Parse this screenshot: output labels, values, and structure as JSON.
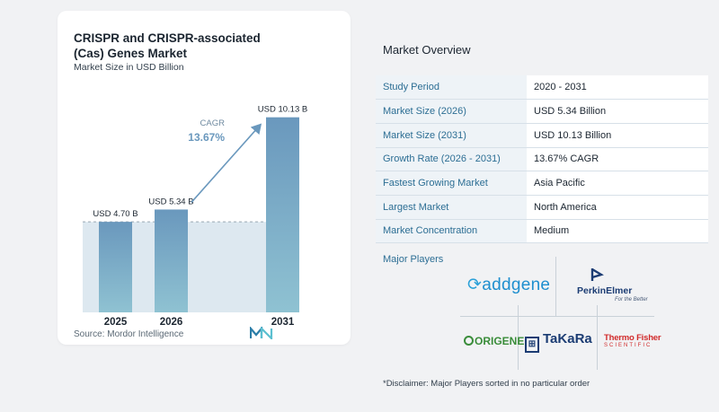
{
  "card": {
    "title": "CRISPR and CRISPR-associated (Cas) Genes Market",
    "subtitle": "Market Size in USD Billion",
    "source": "Source:  Mordor Intelligence"
  },
  "chart_data": {
    "type": "bar",
    "categories": [
      "2025",
      "2026",
      "2031"
    ],
    "values": [
      4.7,
      5.34,
      10.13
    ],
    "data_labels": [
      "USD 4.70 B",
      "USD 5.34 B",
      "USD 10.13 B"
    ],
    "annotation": {
      "label": "CAGR",
      "value": "13.67%"
    },
    "ylim": [
      0,
      11
    ],
    "reference_line": 4.7,
    "colors": {
      "bar_top": "#6a98bd",
      "bar_bottom": "#8fc2d2",
      "shade": "#dde8f0",
      "arrow": "#6a98bd"
    }
  },
  "overview": {
    "title": "Market Overview",
    "rows": [
      {
        "key": "Study Period",
        "value": "2020 - 2031"
      },
      {
        "key": "Market Size (2026)",
        "value": "USD 5.34 Billion"
      },
      {
        "key": "Market Size (2031)",
        "value": "USD 10.13 Billion"
      },
      {
        "key": "Growth Rate (2026 - 2031)",
        "value": "13.67% CAGR"
      },
      {
        "key": "Fastest Growing Market",
        "value": "Asia Pacific"
      },
      {
        "key": "Largest Market",
        "value": "North America"
      },
      {
        "key": "Market Concentration",
        "value": "Medium"
      }
    ]
  },
  "players": {
    "title": "Major Players",
    "addgene": "addgene",
    "perkinelmer": "PerkinElmer",
    "perkinelmer_tag": "For the Better",
    "origene": "ORIGENE",
    "takara": "TaKaRa",
    "thermo1": "Thermo Fisher",
    "thermo2": "SCIENTIFIC"
  },
  "disclaimer": "*Disclaimer: Major Players sorted in no particular order"
}
